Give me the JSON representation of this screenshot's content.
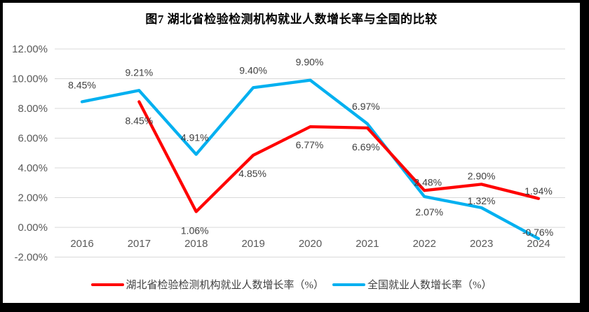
{
  "chart_data": {
    "type": "line",
    "title": "图7 湖北省检验检测机构就业人数增长率与全国的比较",
    "categories": [
      "2016",
      "2017",
      "2018",
      "2019",
      "2020",
      "2021",
      "2022",
      "2023",
      "2024"
    ],
    "y_axis": {
      "ticks": [
        {
          "label": "12.00%",
          "value": 12
        },
        {
          "label": "10.00%",
          "value": 10
        },
        {
          "label": "8.00%",
          "value": 8
        },
        {
          "label": "6.00%",
          "value": 6
        },
        {
          "label": "4.00%",
          "value": 4
        },
        {
          "label": "2.00%",
          "value": 2
        },
        {
          "label": "0.00%",
          "value": 0
        },
        {
          "label": "-2.00%",
          "value": -2
        }
      ],
      "min": -2,
      "max": 12,
      "grid": true
    },
    "series": [
      {
        "name": "湖北省检验检测机构就业人数增长率（%）",
        "color": "#FF0000",
        "values": [
          null,
          8.45,
          1.06,
          4.85,
          6.77,
          6.69,
          2.48,
          2.9,
          1.94
        ],
        "labels": [
          "",
          "8.45%",
          "1.06%",
          "4.85%",
          "6.77%",
          "6.69%",
          "2.48%",
          "2.90%",
          "1.94%"
        ],
        "label_offsets": [
          [
            0,
            0
          ],
          [
            0,
            27
          ],
          [
            -2,
            27
          ],
          [
            -1,
            26
          ],
          [
            -1,
            26
          ],
          [
            -2,
            27
          ],
          [
            5,
            -12
          ],
          [
            0,
            -12
          ],
          [
            0,
            -11
          ]
        ]
      },
      {
        "name": "全国就业人数增长率（%）",
        "color": "#00B0F0",
        "values": [
          8.45,
          9.21,
          4.91,
          9.4,
          9.9,
          6.97,
          2.07,
          1.32,
          -0.76
        ],
        "labels": [
          "8.45%",
          "9.21%",
          "4.91%",
          "9.40%",
          "9.90%",
          "6.97%",
          "2.07%",
          "1.32%",
          "-0.76%"
        ],
        "label_offsets": [
          [
            0,
            -24
          ],
          [
            0,
            -26
          ],
          [
            -2,
            -24
          ],
          [
            0,
            -25
          ],
          [
            -1,
            -26
          ],
          [
            -2,
            -25
          ],
          [
            7,
            22
          ],
          [
            0,
            -10
          ],
          [
            -1,
            -9
          ]
        ]
      }
    ],
    "legend_position": "bottom",
    "colors": {
      "gridline": "#D9D9D9",
      "axis_text": "#595959",
      "data_label": "#404040",
      "title_text": "#1A1A1A",
      "background": "#FFFFFF",
      "frame_border": "#000000"
    }
  }
}
